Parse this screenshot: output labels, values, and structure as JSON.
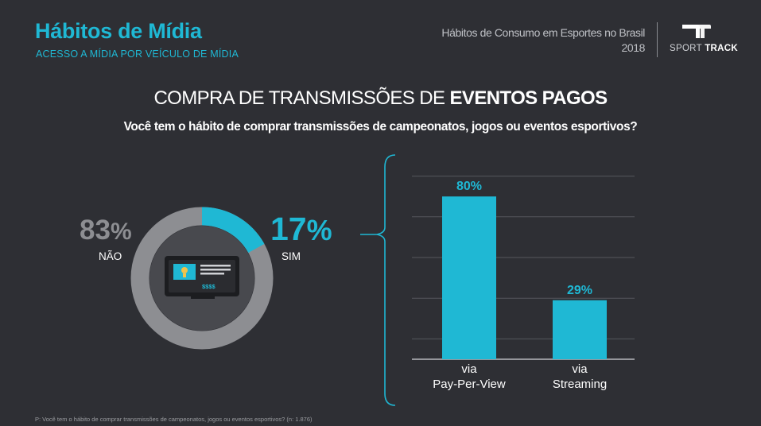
{
  "header": {
    "title": "Hábitos de Mídia",
    "subtitle": "ACESSO A MÍDIA POR VEÍCULO DE MÍDIA"
  },
  "brand": {
    "study_line1": "Hábitos de Consumo em Esportes no Brasil",
    "study_year": "2018",
    "name_light": "SPORT",
    "name_bold": "TRACK",
    "logo_icon": "tt-logo-icon"
  },
  "slide": {
    "title_regular": "COMPRA DE TRANSMISSÕES DE ",
    "title_bold": "EVENTOS PAGOS",
    "question": "Você tem o hábito de comprar transmissões de campeonatos, jogos ou eventos esportivos?",
    "footnote": "P: Você tem o hábito de comprar transmissões de campeonatos, jogos ou eventos esportivos? (n: 1.876)"
  },
  "donut": {
    "no_value": "83",
    "no_label": "NÃO",
    "yes_value": "17",
    "yes_label": "SIM",
    "percent_sign": "%",
    "center_icon": "tv-screen-icon",
    "center_price": "$$$$"
  },
  "colors": {
    "accent": "#1fb8d4",
    "gray": "#8d8e92",
    "background": "#2e2f34"
  },
  "chart_data": [
    {
      "type": "pie",
      "categories": [
        "NÃO",
        "SIM"
      ],
      "values": [
        83,
        17
      ],
      "unit": "%"
    },
    {
      "type": "bar",
      "categories": [
        "via\nPay-Per-View",
        "via\nStreaming"
      ],
      "values": [
        80,
        29
      ],
      "labels": [
        "80%",
        "29%"
      ],
      "ylim": [
        0,
        100
      ],
      "grid": true
    }
  ]
}
